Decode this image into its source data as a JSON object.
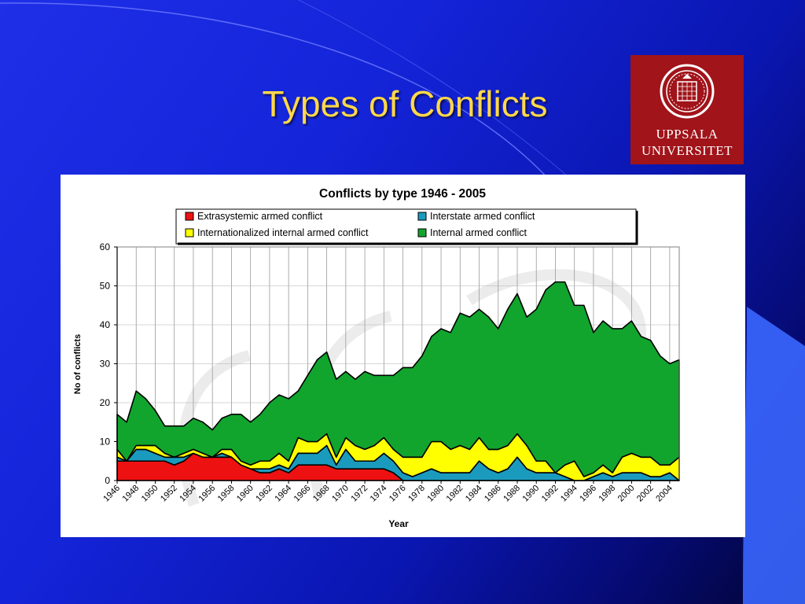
{
  "slide": {
    "title": "Types of Conflicts"
  },
  "logo": {
    "line1": "UPPSALA",
    "line2": "UNIVERSITET",
    "seal_icon": "university-seal-icon"
  },
  "colors": {
    "background": "#1424d8",
    "title": "#ffd84a",
    "logo_bg": "#a0141a",
    "extrasystemic": "#ee1111",
    "interstate": "#1a9bbd",
    "internationalized": "#ffff00",
    "internal": "#11a52e"
  },
  "chart_data": {
    "type": "area",
    "stacked": true,
    "title": "Conflicts by type 1946 - 2005",
    "xlabel": "Year",
    "ylabel": "No of conflicts",
    "ylim": [
      0,
      60
    ],
    "yticks": [
      0,
      10,
      20,
      30,
      40,
      50,
      60
    ],
    "grid": "vertical",
    "legend_position": "top",
    "x": [
      1946,
      1947,
      1948,
      1949,
      1950,
      1951,
      1952,
      1953,
      1954,
      1955,
      1956,
      1957,
      1958,
      1959,
      1960,
      1961,
      1962,
      1963,
      1964,
      1965,
      1966,
      1967,
      1968,
      1969,
      1970,
      1971,
      1972,
      1973,
      1974,
      1975,
      1976,
      1977,
      1978,
      1979,
      1980,
      1981,
      1982,
      1983,
      1984,
      1985,
      1986,
      1987,
      1988,
      1989,
      1990,
      1991,
      1992,
      1993,
      1994,
      1995,
      1996,
      1997,
      1998,
      1999,
      2000,
      2001,
      2002,
      2003,
      2004,
      2005
    ],
    "xtick_labels": [
      "1946",
      "1948",
      "1950",
      "1952",
      "1954",
      "1956",
      "1958",
      "1960",
      "1962",
      "1964",
      "1966",
      "1968",
      "1970",
      "1972",
      "1974",
      "1976",
      "1978",
      "1980",
      "1982",
      "1984",
      "1986",
      "1988",
      "1990",
      "1992",
      "1994",
      "1996",
      "1998",
      "2000",
      "2002",
      "2004"
    ],
    "series": [
      {
        "name": "Extrasystemic armed conflict",
        "color": "#ee1111",
        "values": [
          5,
          5,
          5,
          5,
          5,
          5,
          4,
          5,
          7,
          6,
          6,
          6,
          6,
          4,
          3,
          2,
          2,
          3,
          2,
          4,
          4,
          4,
          4,
          3,
          3,
          3,
          3,
          3,
          3,
          2,
          0,
          0,
          0,
          0,
          0,
          0,
          0,
          0,
          0,
          0,
          0,
          0,
          0,
          0,
          0,
          0,
          0,
          0,
          0,
          0,
          0,
          0,
          0,
          0,
          0,
          0,
          0,
          0,
          0,
          0
        ]
      },
      {
        "name": "Interstate armed conflict",
        "color": "#1a9bbd",
        "values": [
          1,
          0,
          3,
          3,
          2,
          1,
          2,
          1,
          0,
          0,
          0,
          1,
          0,
          0,
          0,
          1,
          1,
          1,
          1,
          3,
          3,
          3,
          5,
          1,
          5,
          2,
          2,
          2,
          4,
          3,
          2,
          1,
          2,
          3,
          2,
          2,
          2,
          2,
          5,
          3,
          2,
          3,
          6,
          3,
          2,
          2,
          2,
          1,
          0,
          0,
          1,
          2,
          1,
          2,
          2,
          2,
          1,
          1,
          2,
          0
        ]
      },
      {
        "name": "Internationalized internal armed conflict",
        "color": "#ffff00",
        "values": [
          2,
          0,
          1,
          1,
          2,
          1,
          0,
          1,
          1,
          1,
          0,
          1,
          2,
          1,
          1,
          2,
          2,
          3,
          2,
          4,
          3,
          3,
          3,
          2,
          3,
          4,
          3,
          4,
          4,
          3,
          4,
          5,
          4,
          7,
          8,
          6,
          7,
          6,
          6,
          5,
          6,
          6,
          6,
          6,
          3,
          3,
          0,
          3,
          5,
          1,
          1,
          2,
          1,
          4,
          5,
          4,
          5,
          3,
          2,
          6
        ]
      },
      {
        "name": "Internal armed conflict",
        "color": "#11a52e",
        "values": [
          9,
          10,
          14,
          12,
          9,
          7,
          8,
          7,
          8,
          8,
          7,
          8,
          9,
          12,
          11,
          12,
          15,
          15,
          16,
          12,
          17,
          21,
          21,
          20,
          17,
          17,
          20,
          18,
          16,
          19,
          23,
          23,
          26,
          27,
          29,
          30,
          34,
          34,
          33,
          34,
          31,
          35,
          36,
          33,
          39,
          44,
          49,
          47,
          40,
          44,
          36,
          37,
          37,
          33,
          34,
          31,
          30,
          28,
          26,
          25
        ]
      }
    ]
  }
}
